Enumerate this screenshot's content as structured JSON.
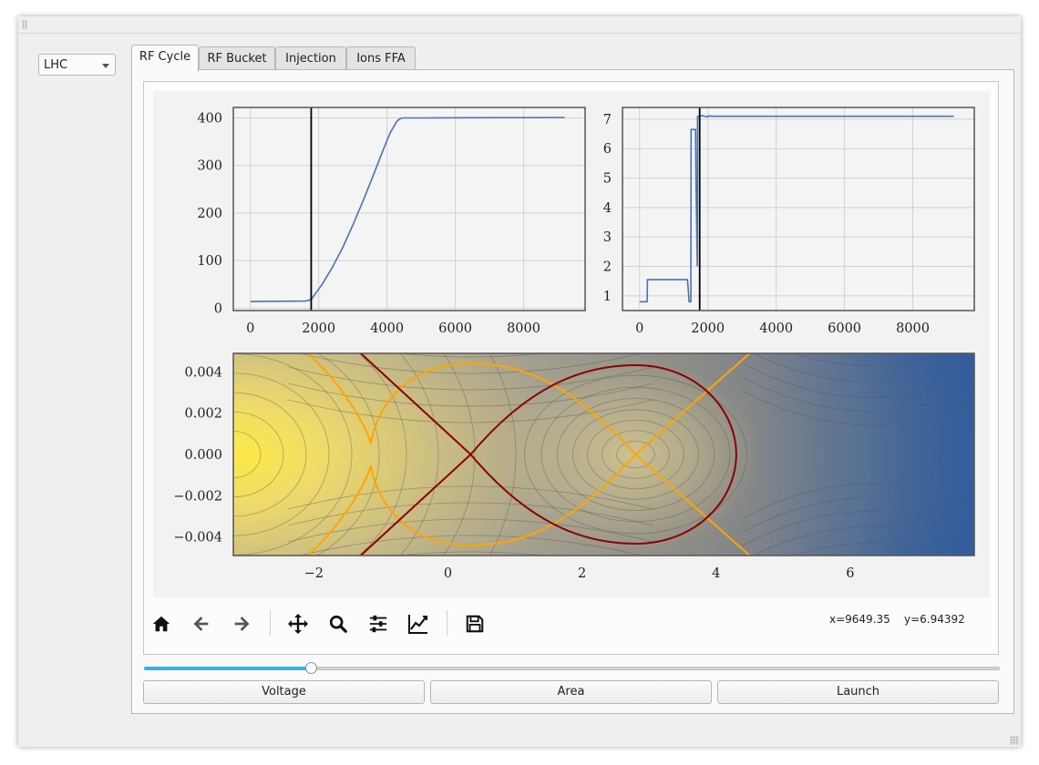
{
  "machine_select": {
    "value": "LHC"
  },
  "tabs": [
    {
      "label": "RF Cycle",
      "active": true
    },
    {
      "label": "RF Bucket",
      "active": false
    },
    {
      "label": "Injection",
      "active": false
    },
    {
      "label": "Ions FFA",
      "active": false
    }
  ],
  "toolbar": {
    "icons": [
      "home-icon",
      "back-arrow-icon",
      "forward-arrow-icon",
      "pan-icon",
      "zoom-icon",
      "subplots-icon",
      "axes-edit-icon",
      "save-icon"
    ],
    "coord_x": "x=9649.35",
    "coord_y": "y=6.94392"
  },
  "slider": {
    "value": 0.195
  },
  "buttons": {
    "voltage": "Voltage",
    "area": "Area",
    "launch": "Launch"
  },
  "colors": {
    "line": "#4c72b0",
    "marker": "#000000",
    "separatrix_inner": "#8b0000",
    "separatrix_outer": "#ffa500",
    "accent": "#3daee9"
  },
  "chart_data": [
    {
      "type": "line",
      "title": "",
      "xlim": [
        -500,
        9800
      ],
      "ylim": [
        -5,
        422
      ],
      "xticks": [
        0,
        2000,
        4000,
        6000,
        8000
      ],
      "yticks": [
        0,
        100,
        200,
        300,
        400
      ],
      "grid": true,
      "marker_x": 1780,
      "series": [
        {
          "x": [
            0,
            1600,
            1700,
            1800,
            1900,
            2100,
            2400,
            2700,
            3000,
            3300,
            3600,
            3900,
            4100,
            4300,
            4400,
            4500,
            5000,
            9200
          ],
          "y": [
            14,
            15,
            16,
            20,
            30,
            50,
            86,
            127,
            175,
            226,
            280,
            335,
            370,
            394,
            399,
            400,
            400,
            401
          ]
        }
      ]
    },
    {
      "type": "line",
      "title": "",
      "xlim": [
        -500,
        9800
      ],
      "ylim": [
        0.5,
        7.4
      ],
      "xticks": [
        0,
        2000,
        4000,
        6000,
        8000
      ],
      "yticks": [
        1,
        2,
        3,
        4,
        5,
        6,
        7
      ],
      "grid": true,
      "marker_x": 1760,
      "series": [
        {
          "x": [
            0,
            220,
            230,
            1400,
            1410,
            1450,
            1500,
            1510,
            1640,
            1650,
            1690,
            1700,
            1760,
            1800,
            2000,
            2050,
            2100,
            9200
          ],
          "y": [
            0.8,
            0.8,
            1.55,
            1.55,
            1.45,
            0.8,
            0.8,
            6.65,
            6.65,
            5.0,
            2.0,
            7.1,
            7.1,
            7.12,
            7.08,
            7.12,
            7.1,
            7.1
          ]
        }
      ]
    },
    {
      "type": "heatmap",
      "title": "",
      "xlim": [
        -3.2,
        7.85
      ],
      "ylim": [
        -0.0049,
        0.0049
      ],
      "xticks": [
        -2,
        0,
        2,
        4,
        6
      ],
      "yticks": [
        -0.004,
        -0.002,
        0.0,
        0.002,
        0.004
      ],
      "tick_labels_x": [
        "−2",
        "0",
        "2",
        "4",
        "6"
      ],
      "tick_labels_y": [
        "−0.004",
        "−0.002",
        "0.000",
        "0.002",
        "0.004"
      ],
      "colormap": "cividis",
      "contours": "filled, phase-space hamiltonian",
      "fixed_points": {
        "unstable_inner": 0.34,
        "stable": 2.8
      },
      "series": [
        {
          "name": "",
          "color": "#8b0000",
          "kind": "separatrix"
        },
        {
          "name": "",
          "color": "#ffa500",
          "kind": "separatrix"
        }
      ]
    }
  ]
}
